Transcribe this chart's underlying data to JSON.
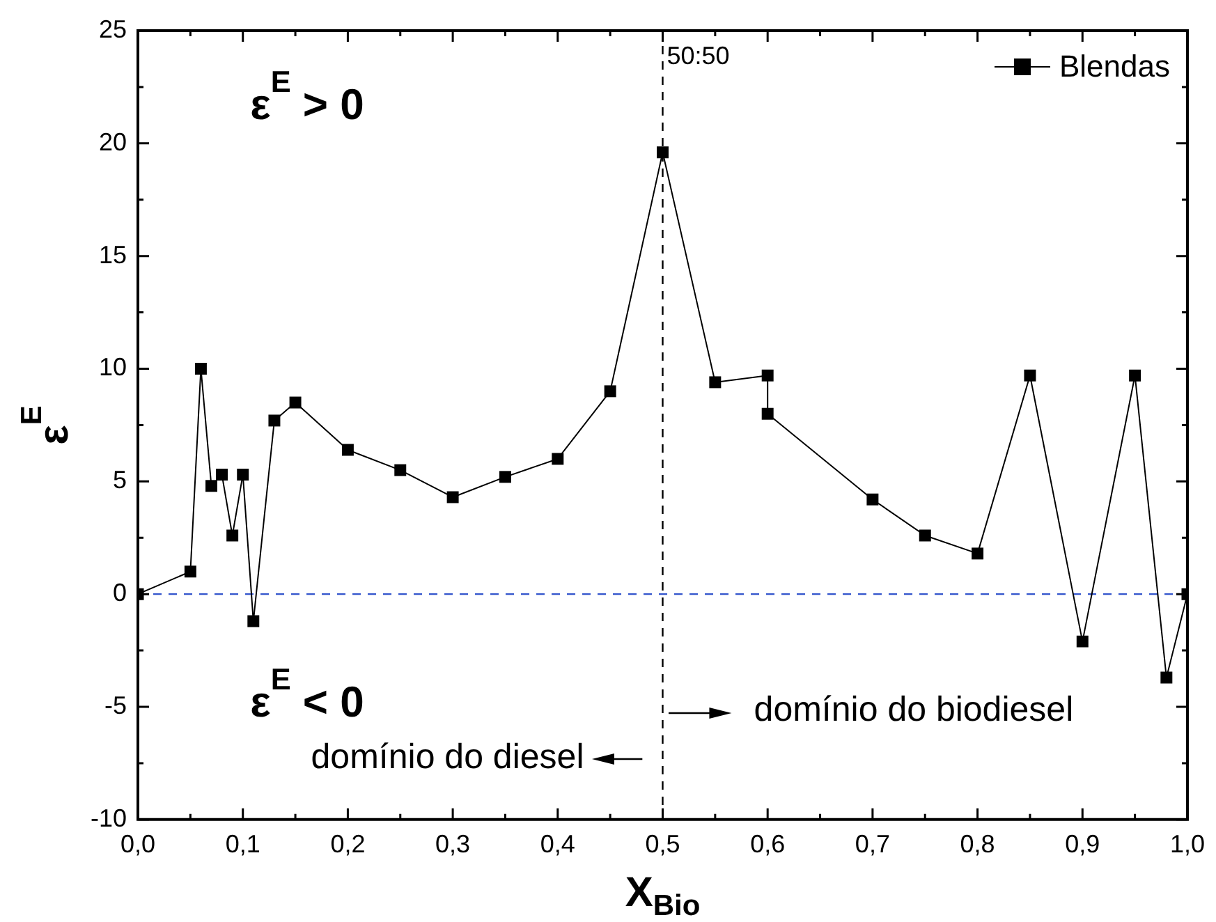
{
  "chart_data": {
    "type": "line",
    "xlabel": "X$_{Bio}$",
    "ylabel": "ε$^{E}$",
    "x": [
      0,
      0.05,
      0.06,
      0.07,
      0.08,
      0.09,
      0.1,
      0.11,
      0.13,
      0.15,
      0.2,
      0.25,
      0.3,
      0.35,
      0.4,
      0.45,
      0.5,
      0.55,
      0.6,
      0.6,
      0.7,
      0.75,
      0.8,
      0.85,
      0.9,
      0.95,
      0.98,
      1.0
    ],
    "series": [
      {
        "name": "Blendas",
        "color": "#000000",
        "values": [
          0,
          1.0,
          10.0,
          4.8,
          5.3,
          2.6,
          5.3,
          -1.2,
          7.7,
          8.5,
          6.4,
          5.5,
          4.3,
          5.2,
          6.0,
          9.0,
          19.6,
          9.4,
          9.7,
          8.0,
          4.2,
          2.6,
          1.8,
          9.7,
          -2.1,
          9.7,
          -3.7,
          0
        ]
      }
    ],
    "xlim": [
      0,
      1
    ],
    "ylim": [
      -10,
      25
    ],
    "xticks": [
      {
        "value": 0,
        "label": "0,0"
      },
      {
        "value": 0.1,
        "label": "0,1"
      },
      {
        "value": 0.2,
        "label": "0,2"
      },
      {
        "value": 0.3,
        "label": "0,3"
      },
      {
        "value": 0.4,
        "label": "0,4"
      },
      {
        "value": 0.5,
        "label": "0,5"
      },
      {
        "value": 0.6,
        "label": "0,6"
      },
      {
        "value": 0.7,
        "label": "0,7"
      },
      {
        "value": 0.8,
        "label": "0,8"
      },
      {
        "value": 0.9,
        "label": "0,9"
      },
      {
        "value": 1,
        "label": "1,0"
      }
    ],
    "yticks": [
      -10,
      -5,
      0,
      5,
      10,
      15,
      20,
      25
    ],
    "ref_lines": [
      {
        "axis": "x",
        "value": 0.5,
        "label": "50:50",
        "color": "#000000",
        "line_style": "dashed"
      },
      {
        "axis": "y",
        "value": 0,
        "color": "#3355cc",
        "line_style": "dashed"
      }
    ],
    "annotations": [
      "ε$^{E}$ > 0",
      "ε$^{E}$ < 0",
      "domínio do biodiesel",
      "domínio do diesel"
    ],
    "legend": "top right",
    "marker": "square",
    "line_style": "solid",
    "grid": false
  }
}
